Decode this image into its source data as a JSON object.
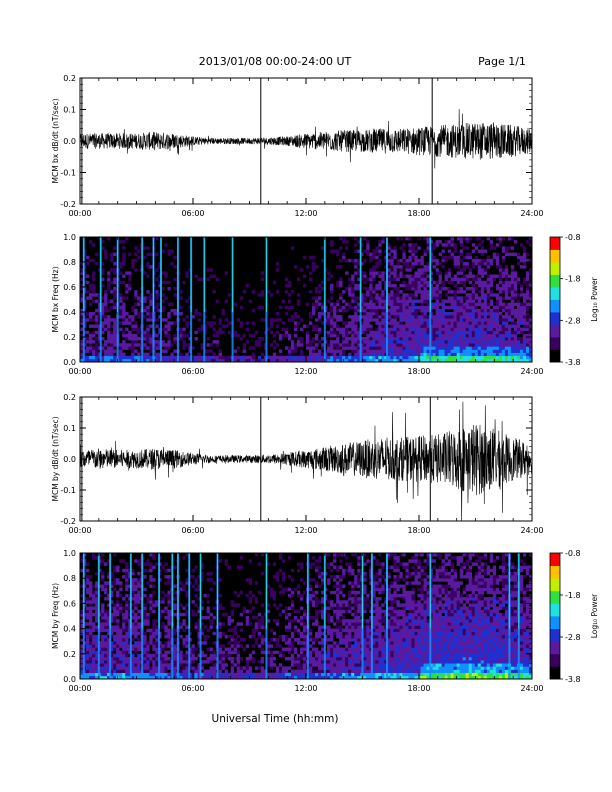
{
  "header": {
    "date_range": "2013/01/08  00:00-24:00 UT",
    "page": "Page 1/1"
  },
  "footer": {
    "xlabel": "Universal Time (hh:mm)"
  },
  "colors": {
    "trace": "#000000",
    "spectrogram_background": "#000000",
    "colormap": [
      "#000000",
      "#3a0060",
      "#5a1aa0",
      "#2030d0",
      "#1090ff",
      "#20e0e0",
      "#30e040",
      "#c0f000",
      "#ffc000",
      "#ff0000"
    ]
  },
  "chart_data": [
    {
      "type": "line",
      "station": "MCM",
      "component": "bx",
      "ylabel": "MCM bx dB/dt (nT/sec)",
      "x_ticks": [
        "00:00",
        "06:00",
        "12:00",
        "18:00",
        "24:00"
      ],
      "xlim_hours": [
        0,
        24
      ],
      "y_ticks": [
        "-0.2",
        "-0.1",
        "0.0",
        "0.1",
        "0.2"
      ],
      "ylim": [
        -0.2,
        0.2
      ],
      "envelope": {
        "hours": [
          0,
          1,
          2,
          3,
          4,
          5,
          6,
          7,
          8,
          9,
          10,
          11,
          12,
          13,
          14,
          15,
          16,
          17,
          18,
          19,
          20,
          21,
          22,
          23,
          24
        ],
        "amplitude": [
          0.025,
          0.025,
          0.025,
          0.025,
          0.03,
          0.025,
          0.015,
          0.01,
          0.01,
          0.01,
          0.012,
          0.015,
          0.025,
          0.03,
          0.035,
          0.035,
          0.04,
          0.04,
          0.045,
          0.05,
          0.055,
          0.06,
          0.06,
          0.05,
          0.04
        ]
      },
      "spikes": [
        {
          "hour": 0.1,
          "min": -0.2,
          "max": 0.2
        },
        {
          "hour": 9.6,
          "min": -0.2,
          "max": 0.2
        },
        {
          "hour": 18.7,
          "min": -0.2,
          "max": 0.2
        }
      ]
    },
    {
      "type": "heatmap",
      "station": "MCM",
      "component": "bx",
      "ylabel": "MCM bx Freq (Hz)",
      "x_ticks": [
        "00:00",
        "06:00",
        "12:00",
        "18:00",
        "24:00"
      ],
      "xlim_hours": [
        0,
        24
      ],
      "y_ticks": [
        "0.0",
        "0.2",
        "0.4",
        "0.6",
        "0.8",
        "1.0"
      ],
      "ylim": [
        0,
        1.0
      ],
      "colorbar": {
        "label": "Log₁₀ Power",
        "ticks": [
          "-0.8",
          "-1.8",
          "-2.8",
          "-3.8"
        ],
        "range": [
          -3.8,
          -0.8
        ]
      },
      "bands": [
        0.2,
        1.1,
        2.0,
        3.3,
        3.9,
        4.3,
        5.2,
        5.9,
        6.6,
        8.1,
        9.9,
        13.0,
        14.9,
        16.3,
        18.6
      ],
      "activity": {
        "hours": [
          0,
          2,
          4,
          6,
          8,
          10,
          12,
          14,
          16,
          18,
          20,
          22,
          24
        ],
        "level": [
          0.45,
          0.45,
          0.4,
          0.3,
          0.25,
          0.25,
          0.35,
          0.45,
          0.55,
          0.6,
          0.6,
          0.6,
          0.5
        ]
      }
    },
    {
      "type": "line",
      "station": "MCM",
      "component": "by",
      "ylabel": "MCM by dB/dt (nT/sec)",
      "x_ticks": [
        "00:00",
        "06:00",
        "12:00",
        "18:00",
        "24:00"
      ],
      "xlim_hours": [
        0,
        24
      ],
      "y_ticks": [
        "-0.2",
        "-0.1",
        "0.0",
        "0.1",
        "0.2"
      ],
      "ylim": [
        -0.2,
        0.2
      ],
      "envelope": {
        "hours": [
          0,
          1,
          2,
          3,
          4,
          5,
          6,
          7,
          8,
          9,
          10,
          11,
          12,
          13,
          14,
          15,
          16,
          17,
          18,
          19,
          20,
          21,
          22,
          23,
          24
        ],
        "amplitude": [
          0.03,
          0.035,
          0.03,
          0.03,
          0.035,
          0.03,
          0.02,
          0.012,
          0.012,
          0.012,
          0.015,
          0.02,
          0.03,
          0.04,
          0.05,
          0.06,
          0.07,
          0.07,
          0.075,
          0.08,
          0.1,
          0.12,
          0.1,
          0.07,
          0.05
        ]
      },
      "spikes": [
        {
          "hour": 0.1,
          "min": -0.2,
          "max": 0.2
        },
        {
          "hour": 9.6,
          "min": -0.2,
          "max": 0.2
        },
        {
          "hour": 18.6,
          "min": -0.2,
          "max": 0.2
        }
      ]
    },
    {
      "type": "heatmap",
      "station": "MCM",
      "component": "by",
      "ylabel": "MCM by Freq (Hz)",
      "x_ticks": [
        "00:00",
        "06:00",
        "12:00",
        "18:00",
        "24:00"
      ],
      "xlim_hours": [
        0,
        24
      ],
      "y_ticks": [
        "0.0",
        "0.2",
        "0.4",
        "0.6",
        "0.8",
        "1.0"
      ],
      "ylim": [
        0,
        1.0
      ],
      "colorbar": {
        "label": "Log₁₀ Power",
        "ticks": [
          "-0.8",
          "-1.8",
          "-2.8",
          "-3.8"
        ],
        "range": [
          -3.8,
          -0.8
        ]
      },
      "bands": [
        0.2,
        1.0,
        1.6,
        2.7,
        3.3,
        4.2,
        4.9,
        5.2,
        5.8,
        6.4,
        7.3,
        9.9,
        12.1,
        13.0,
        15.0,
        15.5,
        16.3,
        18.6,
        22.8,
        23.3
      ],
      "activity": {
        "hours": [
          0,
          2,
          4,
          6,
          8,
          10,
          12,
          14,
          16,
          18,
          20,
          22,
          24
        ],
        "level": [
          0.55,
          0.55,
          0.5,
          0.4,
          0.35,
          0.35,
          0.45,
          0.55,
          0.6,
          0.65,
          0.7,
          0.7,
          0.6
        ]
      }
    }
  ]
}
